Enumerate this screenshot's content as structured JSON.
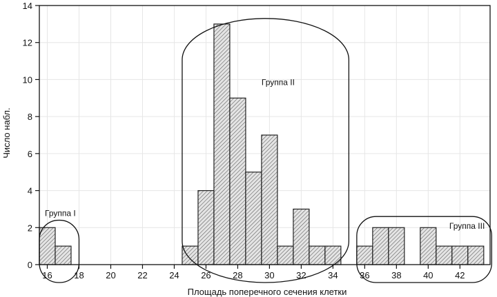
{
  "chart_data": {
    "type": "bar",
    "xlabel": "Площадь поперечного сечения клетки",
    "ylabel": "Число набл.",
    "xlim": [
      15.5,
      43.9
    ],
    "ylim": [
      0,
      14
    ],
    "bin_width": 1,
    "x_ticks": [
      16,
      18,
      20,
      22,
      24,
      26,
      28,
      30,
      32,
      34,
      36,
      38,
      40,
      42
    ],
    "y_ticks": [
      0,
      2,
      4,
      6,
      8,
      10,
      12,
      14
    ],
    "grid": true,
    "bins": [
      {
        "x": 16,
        "value": 2
      },
      {
        "x": 17,
        "value": 1
      },
      {
        "x": 25,
        "value": 1
      },
      {
        "x": 26,
        "value": 4
      },
      {
        "x": 27,
        "value": 13
      },
      {
        "x": 28,
        "value": 9
      },
      {
        "x": 29,
        "value": 5
      },
      {
        "x": 30,
        "value": 7
      },
      {
        "x": 31,
        "value": 1
      },
      {
        "x": 32,
        "value": 3
      },
      {
        "x": 33,
        "value": 1
      },
      {
        "x": 34,
        "value": 1
      },
      {
        "x": 36,
        "value": 1
      },
      {
        "x": 37,
        "value": 2
      },
      {
        "x": 38,
        "value": 2
      },
      {
        "x": 40,
        "value": 2
      },
      {
        "x": 41,
        "value": 1
      },
      {
        "x": 42,
        "value": 1
      },
      {
        "x": 43,
        "value": 1
      }
    ],
    "annotations": [
      {
        "text": "Группа I",
        "x_range": [
          15.5,
          18
        ],
        "y_range": [
          0,
          2.4
        ]
      },
      {
        "text": "Группа II",
        "x_range": [
          24.5,
          35
        ],
        "y_range": [
          0,
          13.3
        ]
      },
      {
        "text": "Группа III",
        "x_range": [
          35.5,
          44
        ],
        "y_range": [
          0,
          2.6
        ]
      }
    ],
    "colors": {
      "bar_fill": "#d8d8d8",
      "bar_stroke": "#222222",
      "grid": "#e6e6e6"
    }
  }
}
